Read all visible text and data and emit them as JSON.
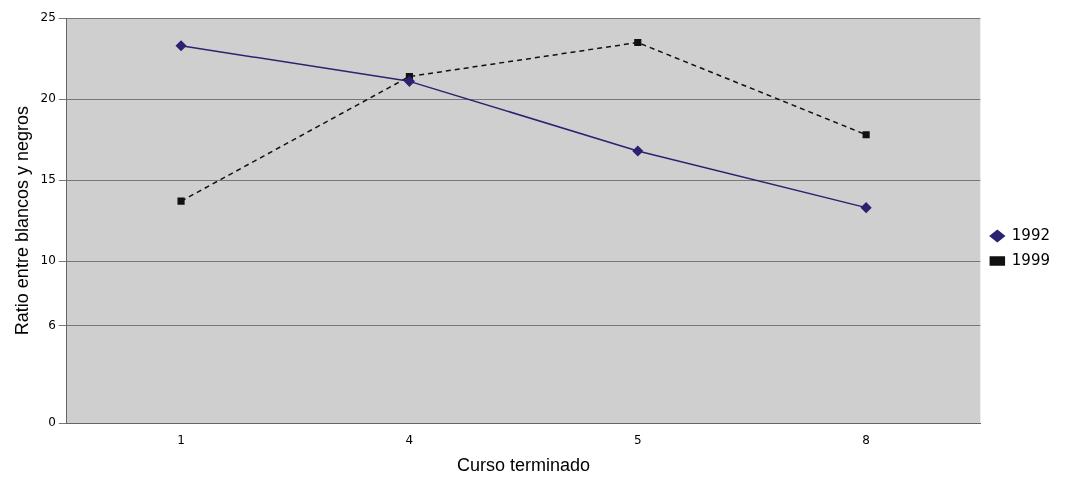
{
  "chart_data": {
    "type": "line",
    "xlabel": "Curso terminado",
    "ylabel": "Ratio entre blancos y negros",
    "categories": [
      "1",
      "4",
      "5",
      "8"
    ],
    "series": [
      {
        "name": "1992",
        "color": "#2b2270",
        "values": [
          23.3,
          21.1,
          16.8,
          13.3
        ],
        "marker": "diamond",
        "line_style": "solid"
      },
      {
        "name": "1999",
        "color": "#111111",
        "values": [
          13.7,
          21.4,
          23.5,
          17.8
        ],
        "marker": "square",
        "line_style": "dashed"
      }
    ],
    "ylim": [
      0,
      25
    ],
    "yticks": [
      0,
      6,
      10,
      15,
      20,
      25
    ],
    "grid": "y",
    "legend": "right"
  }
}
